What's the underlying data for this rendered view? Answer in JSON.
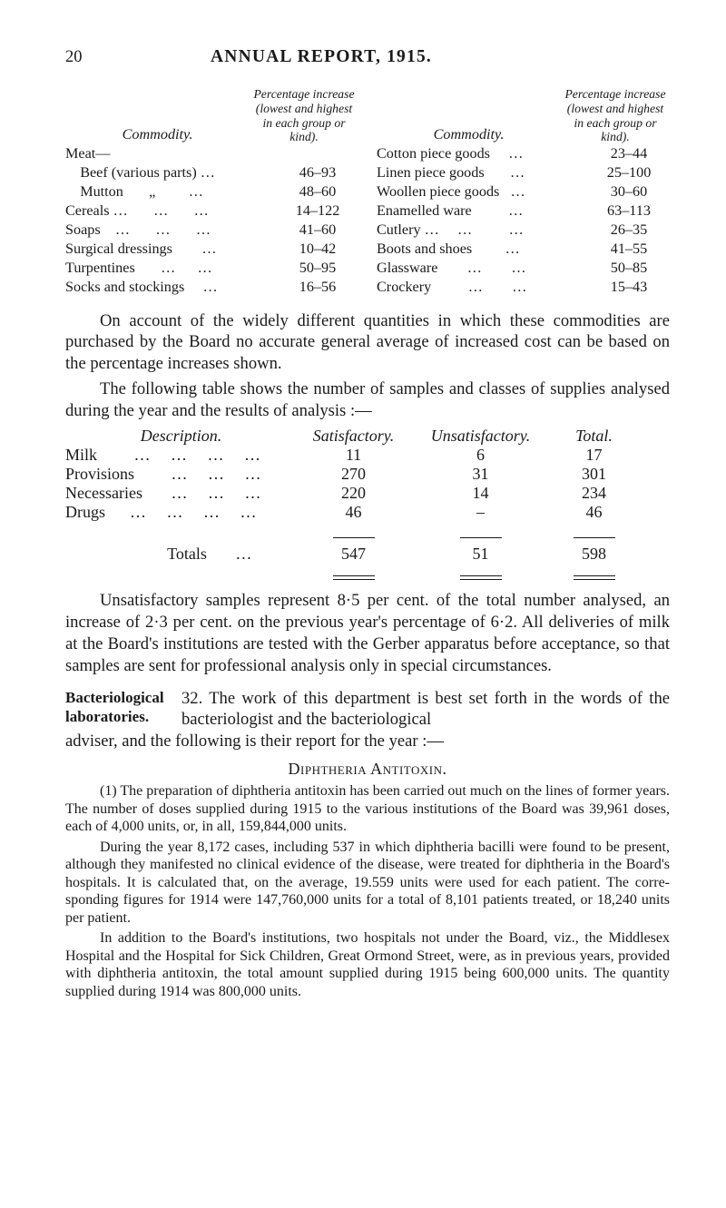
{
  "page_number": "20",
  "header_title": "ANNUAL REPORT, 1915.",
  "commodities_header": {
    "label_commodity": "Commodity.",
    "label_range_line1": "Percentage increase",
    "label_range_line2_left": "(lowest and highest in each group or kind).",
    "label_range_line2_right": "(lowest and highest in each group or kind)."
  },
  "left_col": [
    {
      "name": "Meat—",
      "val": ""
    },
    {
      "name": "    Beef (various parts) …",
      "val": "46–93"
    },
    {
      "name": "    Mutton       „         …",
      "val": "48–60"
    },
    {
      "name": "Cereals …       …       …",
      "val": "14–122"
    },
    {
      "name": "Soaps    …       …       …",
      "val": "41–60"
    },
    {
      "name": "Surgical dressings        …",
      "val": "10–42"
    },
    {
      "name": "Turpentines       …      …",
      "val": "50–95"
    },
    {
      "name": "Socks and stockings     …",
      "val": "16–56"
    }
  ],
  "right_col": [
    {
      "name": "Cotton piece goods     …",
      "val": "23–44"
    },
    {
      "name": "Linen piece goods       …",
      "val": "25–100"
    },
    {
      "name": "Woollen piece goods   …",
      "val": "30–60"
    },
    {
      "name": "Enamelled ware          …",
      "val": "63–113"
    },
    {
      "name": "Cutlery …     …          …",
      "val": "26–35"
    },
    {
      "name": "Boots and shoes         …",
      "val": "41–55"
    },
    {
      "name": "Glassware        …        …",
      "val": "50–85"
    },
    {
      "name": "Crockery          …        …",
      "val": "15–43"
    }
  ],
  "para1": "On account of the widely different quantities in which these commodities are purchased by the Board no accurate general average of increased cost can be based on the percentage increases shown.",
  "para2": "The following table shows the number of samples and classes of supplies analysed during the year and the results of analysis :—",
  "analysis": {
    "headers": {
      "desc": "Description.",
      "sat": "Satisfactory.",
      "unsat": "Unsatisfactory.",
      "total": "Total."
    },
    "rows": [
      {
        "desc": "Milk         …     …     …     …",
        "sat": "11",
        "unsat": "6",
        "total": "17"
      },
      {
        "desc": "Provisions         …     …     …",
        "sat": "270",
        "unsat": "31",
        "total": "301"
      },
      {
        "desc": "Necessaries       …     …     …",
        "sat": "220",
        "unsat": "14",
        "total": "234"
      },
      {
        "desc": "Drugs      …     …     …     …",
        "sat": "46",
        "unsat": "–",
        "total": "46"
      }
    ],
    "totals": {
      "desc": "                         Totals       …",
      "sat": "547",
      "unsat": "51",
      "total": "598"
    }
  },
  "para3": "Unsatisfactory samples represent 8·5 per cent. of the total number analysed, an increase of 2·3 per cent. on the previous year's percentage of 6·2. All deliveries of milk at the Board's institutions are tested with the Gerber apparatus before accept­ance, so that samples are sent for professional analysis only in special circumstances.",
  "section_label": "Bacteriological laboratories.",
  "para4_lead": "32.   The work of this department is best set forth in the words of the bacteriologist and the bacteriological",
  "para4_tail": "adviser, and the following is their report for the year :—",
  "subhead": "Diphtheria Antitoxin.",
  "para5": "(1) The preparation of diphtheria antitoxin has been carried out much on the lines of former years.  The number of doses supplied during 1915 to the various institutions of the Board was 39,961 doses, each of 4,000 units, or, in all, 159,844,000 units.",
  "para6": "During the year 8,172 cases, including 537 in which diphtheria bacilli were found to be present, although they manifested no clinical evidence of the disease, were treated for diphtheria in the Board's hospitals.  It is calculated that, on the average, 19.559 units were used for each patient.  The corre­sponding figures for 1914 were 147,760,000 units for a total of 8,101 patients treated, or 18,240 units per patient.",
  "para7": "In addition to the Board's institutions, two hospitals not under the Board, viz., the Middlesex Hospital and the Hospital for Sick Children, Great Ormond Street, were, as in previous years, provided with diphtheria antitoxin, the total amount supplied during 1915 being 600,000 units.  The quantity supplied during 1914 was 800,000 units."
}
